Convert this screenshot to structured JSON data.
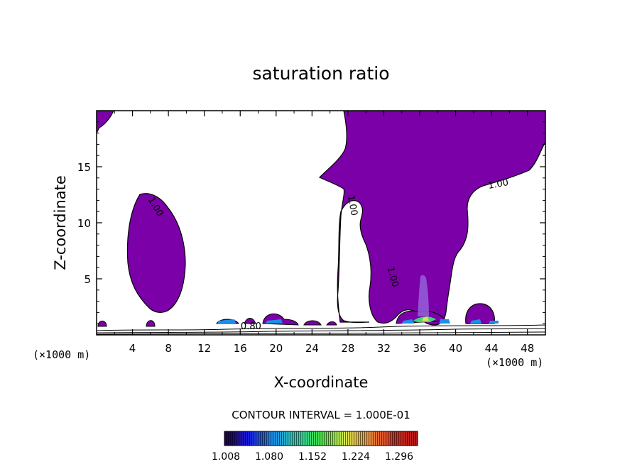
{
  "chart_data": {
    "type": "contour",
    "title": "saturation ratio",
    "xlabel": "X-coordinate",
    "ylabel": "Z-coordinate",
    "x_unit": "(×1000 m)",
    "y_unit": "(×1000 m)",
    "xlim": [
      0,
      50
    ],
    "ylim": [
      0,
      20
    ],
    "x_ticks": [
      4,
      8,
      12,
      16,
      20,
      24,
      28,
      32,
      36,
      40,
      44,
      48
    ],
    "y_ticks": [
      5,
      10,
      15
    ],
    "contour_interval_text": "CONTOUR INTERVAL = 1.000E-01",
    "contour_labels": [
      {
        "text": "1.00",
        "x": 6.3,
        "z": 11.3
      },
      {
        "text": "1.00",
        "x": 28.2,
        "z": 11.5
      },
      {
        "text": "1.00",
        "x": 32.7,
        "z": 5.1
      },
      {
        "text": "1.00",
        "x": 44.8,
        "z": 13.2
      },
      {
        "text": "0.80",
        "x": 17.2,
        "z": 0.5
      }
    ],
    "fill_color": "#7b00a8",
    "colorbar": {
      "labels": [
        "1.008",
        "1.080",
        "1.152",
        "1.224",
        "1.296"
      ],
      "stops": [
        "#20004a",
        "#1c1cd8",
        "#1c8ee8",
        "#30d0b0",
        "#48e048",
        "#d8e850",
        "#e89040",
        "#d83020",
        "#b01818"
      ]
    }
  }
}
